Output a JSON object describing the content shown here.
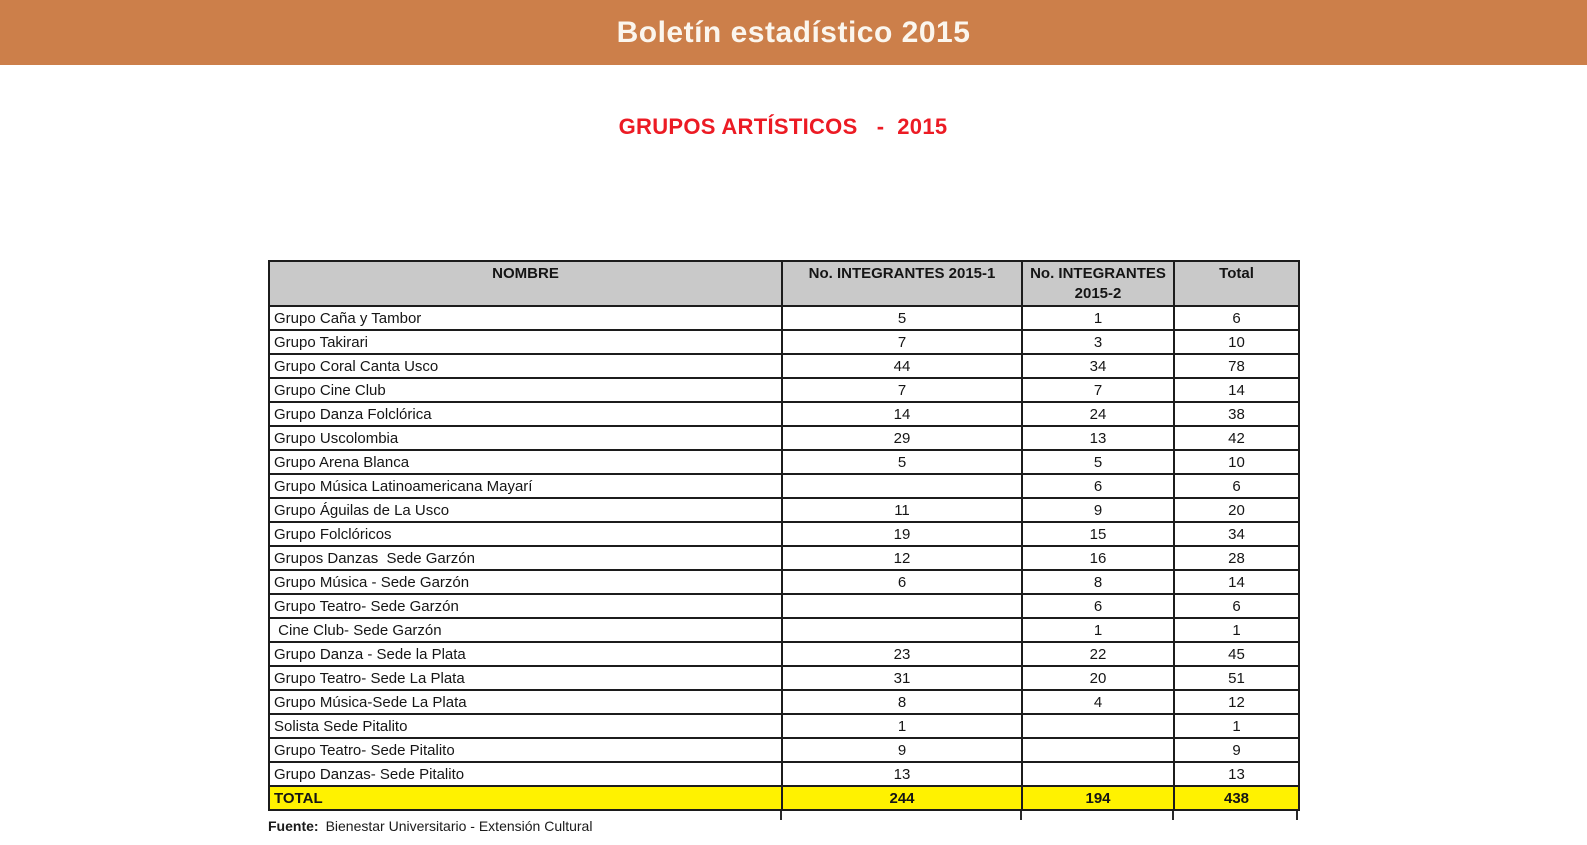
{
  "band": {
    "title": "Boletín estadístico 2015",
    "bg_color": "#CC7F4A",
    "text_color": "#FBF6EE"
  },
  "section": {
    "title": "GRUPOS ARTÍSTICOS   -  2015",
    "color": "#EC1B24"
  },
  "table": {
    "columns": [
      "NOMBRE",
      "No. INTEGRANTES 2015-1",
      "No. INTEGRANTES 2015-2",
      "Total"
    ],
    "header_bg": "#C9C9C9",
    "rows": [
      [
        "Grupo Caña y Tambor",
        "5",
        "1",
        "6"
      ],
      [
        "Grupo Takirari",
        "7",
        "3",
        "10"
      ],
      [
        "Grupo Coral Canta Usco",
        "44",
        "34",
        "78"
      ],
      [
        "Grupo Cine Club",
        "7",
        "7",
        "14"
      ],
      [
        "Grupo Danza Folclórica",
        "14",
        "24",
        "38"
      ],
      [
        "Grupo Uscolombia",
        "29",
        "13",
        "42"
      ],
      [
        "Grupo Arena Blanca",
        "5",
        "5",
        "10"
      ],
      [
        "Grupo Música Latinoamericana Mayarí",
        "",
        "6",
        "6"
      ],
      [
        "Grupo Águilas de La Usco",
        "11",
        "9",
        "20"
      ],
      [
        "Grupo Folclóricos",
        "19",
        "15",
        "34"
      ],
      [
        "Grupos Danzas  Sede Garzón",
        "12",
        "16",
        "28"
      ],
      [
        "Grupo Música - Sede Garzón",
        "6",
        "8",
        "14"
      ],
      [
        "Grupo Teatro- Sede Garzón",
        "",
        "6",
        "6"
      ],
      [
        " Cine Club- Sede Garzón",
        "",
        "1",
        "1"
      ],
      [
        "Grupo Danza - Sede la Plata",
        "23",
        "22",
        "45"
      ],
      [
        "Grupo Teatro- Sede La Plata",
        "31",
        "20",
        "51"
      ],
      [
        "Grupo Música-Sede La Plata",
        "8",
        "4",
        "12"
      ],
      [
        "Solista Sede Pitalito",
        "1",
        "",
        "1"
      ],
      [
        "Grupo Teatro- Sede Pitalito",
        "9",
        "",
        "9"
      ],
      [
        "Grupo Danzas- Sede Pitalito",
        "13",
        "",
        "13"
      ]
    ],
    "total_row": [
      "TOTAL",
      "244",
      "194",
      "438"
    ],
    "total_bg": "#FFF200"
  },
  "footer": {
    "label": "Fuente:",
    "text": "Bienestar Universitario - Extensión Cultural"
  }
}
